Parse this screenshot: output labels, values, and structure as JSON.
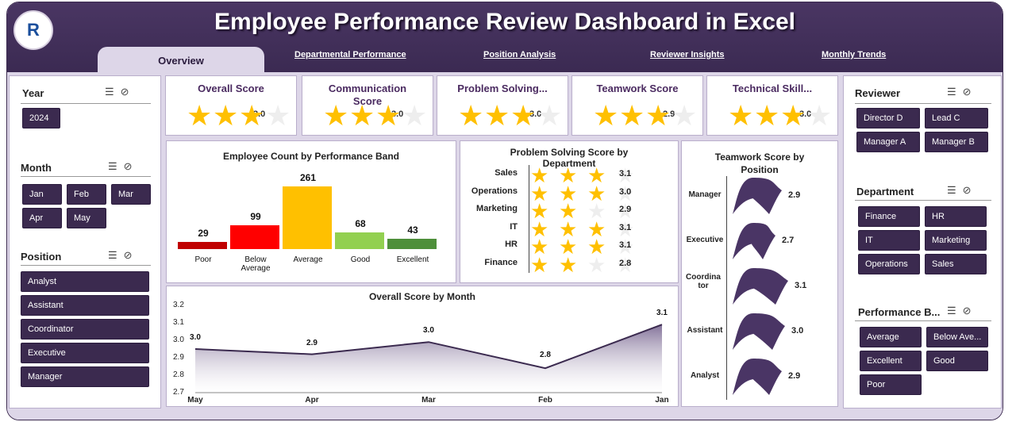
{
  "header": {
    "title": "Employee Performance Review Dashboard in Excel",
    "logo_text": "R"
  },
  "tabs": [
    "Overview",
    "Departmental Performance",
    "Position Analysis",
    "Reviewer Insights",
    "Monthly Trends"
  ],
  "slicers": {
    "year": {
      "title": "Year",
      "items": [
        "2024"
      ]
    },
    "month": {
      "title": "Month",
      "items": [
        "Jan",
        "Feb",
        "Mar",
        "Apr",
        "May"
      ]
    },
    "position": {
      "title": "Position",
      "items": [
        "Analyst",
        "Assistant",
        "Coordinator",
        "Executive",
        "Manager"
      ]
    },
    "reviewer": {
      "title": "Reviewer",
      "items": [
        "Director D",
        "Lead C",
        "Manager A",
        "Manager B"
      ]
    },
    "department": {
      "title": "Department",
      "items": [
        "Finance",
        "HR",
        "IT",
        "Marketing",
        "Operations",
        "Sales"
      ]
    },
    "performance_band": {
      "title": "Performance B...",
      "items": [
        "Average",
        "Below Ave...",
        "Excellent",
        "Good",
        "Poor"
      ]
    }
  },
  "kpis": [
    {
      "title": "Overall Score",
      "value": "3.0",
      "stars": 3
    },
    {
      "title": "Communication Score",
      "value": "3.0",
      "stars": 3
    },
    {
      "title": "Problem Solving...",
      "value": "3.0",
      "stars": 3
    },
    {
      "title": "Teamwork Score",
      "value": "2.9",
      "stars": 3
    },
    {
      "title": "Technical Skill...",
      "value": "3.0",
      "stars": 3
    }
  ],
  "colors": {
    "primary": "#3b2a4f",
    "background": "#ddd6e8",
    "star": "#ffc000",
    "poor": "#c00000",
    "below_average": "#ff0000",
    "average": "#ffc000",
    "good": "#92d050",
    "excellent": "#4e8f3a"
  },
  "chart_data": [
    {
      "type": "bar",
      "title": "Employee Count by Performance Band",
      "categories": [
        "Poor",
        "Below Average",
        "Average",
        "Good",
        "Excellent"
      ],
      "values": [
        29,
        99,
        261,
        68,
        43
      ],
      "colors": [
        "#c00000",
        "#ff0000",
        "#ffc000",
        "#92d050",
        "#4e8f3a"
      ],
      "ylim": [
        0,
        270
      ]
    },
    {
      "type": "bar",
      "title": "Problem Solving Score by Department",
      "categories": [
        "Sales",
        "Operations",
        "Marketing",
        "IT",
        "HR",
        "Finance"
      ],
      "values": [
        3.1,
        3.0,
        2.9,
        3.1,
        3.1,
        2.8
      ],
      "display": [
        "3.1",
        "3.0",
        "2.9",
        "3.1",
        "3.1",
        "2.8"
      ],
      "max": 4
    },
    {
      "type": "bar",
      "title": "Teamwork Score by Position",
      "categories": [
        "Manager",
        "Executive",
        "Coordinator",
        "Assistant",
        "Analyst"
      ],
      "values": [
        2.9,
        2.7,
        3.1,
        3.0,
        2.9
      ],
      "display": [
        "2.9",
        "2.7",
        "3.1",
        "3.0",
        "2.9"
      ]
    },
    {
      "type": "area",
      "title": "Overall Score by Month",
      "categories": [
        "May",
        "Apr",
        "Mar",
        "Feb",
        "Jan"
      ],
      "values": [
        2.95,
        2.92,
        2.99,
        2.84,
        3.09
      ],
      "labels": [
        "3.0",
        "2.9",
        "3.0",
        "2.8",
        "3.1"
      ],
      "yticks": [
        "2.7",
        "2.8",
        "2.9",
        "3.0",
        "3.1",
        "3.2"
      ],
      "ylim": [
        2.7,
        3.2
      ]
    }
  ]
}
